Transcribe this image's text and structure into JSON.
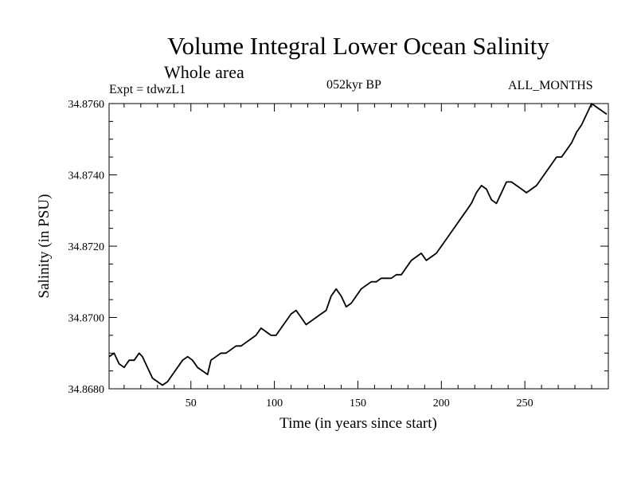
{
  "chart_data": {
    "type": "line",
    "title": "Volume Integral Lower Ocean Salinity",
    "subtitle": "Whole area",
    "experiment_label": "Expt = tdwzL1",
    "period_label": "052kyr BP",
    "months_label": "ALL_MONTHS",
    "xlabel": "Time (in years since start)",
    "ylabel": "Salinity (in PSU)",
    "xlim": [
      1,
      300
    ],
    "ylim": [
      34.868,
      34.876
    ],
    "x_ticks": [
      50,
      100,
      150,
      200,
      250
    ],
    "x_tick_labels": [
      "50",
      "100",
      "150",
      "200",
      "250"
    ],
    "y_ticks": [
      34.868,
      34.87,
      34.872,
      34.874,
      34.876
    ],
    "y_tick_labels": [
      "34.8680",
      "34.8700",
      "34.8720",
      "34.8740",
      "34.8760"
    ],
    "line_color": "#000000",
    "series": [
      {
        "name": "Salinity",
        "x": [
          1,
          4,
          7,
          10,
          13,
          16,
          19,
          21,
          24,
          27,
          30,
          33,
          36,
          39,
          42,
          45,
          48,
          51,
          54,
          57,
          60,
          62,
          65,
          68,
          71,
          74,
          77,
          80,
          83,
          86,
          89,
          92,
          95,
          98,
          101,
          104,
          107,
          110,
          113,
          116,
          119,
          122,
          125,
          128,
          131,
          134,
          137,
          140,
          143,
          146,
          149,
          152,
          155,
          158,
          161,
          164,
          167,
          170,
          173,
          176,
          179,
          182,
          185,
          188,
          191,
          194,
          197,
          200,
          203,
          206,
          209,
          212,
          215,
          218,
          221,
          224,
          227,
          230,
          233,
          236,
          239,
          242,
          245,
          248,
          251,
          254,
          257,
          260,
          263,
          266,
          269,
          272,
          275,
          278,
          281,
          284,
          287,
          290,
          293,
          296,
          299
        ],
        "values": [
          34.8689,
          34.869,
          34.8687,
          34.8686,
          34.8688,
          34.8688,
          34.869,
          34.8689,
          34.8686,
          34.8683,
          34.8682,
          34.8681,
          34.8682,
          34.8684,
          34.8686,
          34.8688,
          34.8689,
          34.8688,
          34.8686,
          34.8685,
          34.8684,
          34.8688,
          34.8689,
          34.869,
          34.869,
          34.8691,
          34.8692,
          34.8692,
          34.8693,
          34.8694,
          34.8695,
          34.8697,
          34.8696,
          34.8695,
          34.8695,
          34.8697,
          34.8699,
          34.8701,
          34.8702,
          34.87,
          34.8698,
          34.8699,
          34.87,
          34.8701,
          34.8702,
          34.8706,
          34.8708,
          34.8706,
          34.8703,
          34.8704,
          34.8706,
          34.8708,
          34.8709,
          34.871,
          34.871,
          34.8711,
          34.8711,
          34.8711,
          34.8712,
          34.8712,
          34.8714,
          34.8716,
          34.8717,
          34.8718,
          34.8716,
          34.8717,
          34.8718,
          34.872,
          34.8722,
          34.8724,
          34.8726,
          34.8728,
          34.873,
          34.8732,
          34.8735,
          34.8737,
          34.8736,
          34.8733,
          34.8732,
          34.8735,
          34.8738,
          34.8738,
          34.8737,
          34.8736,
          34.8735,
          34.8736,
          34.8737,
          34.8739,
          34.8741,
          34.8743,
          34.8745,
          34.8745,
          34.8747,
          34.8749,
          34.8752,
          34.8754,
          34.8757,
          34.876,
          34.8759,
          34.8758,
          34.8757
        ]
      }
    ]
  }
}
